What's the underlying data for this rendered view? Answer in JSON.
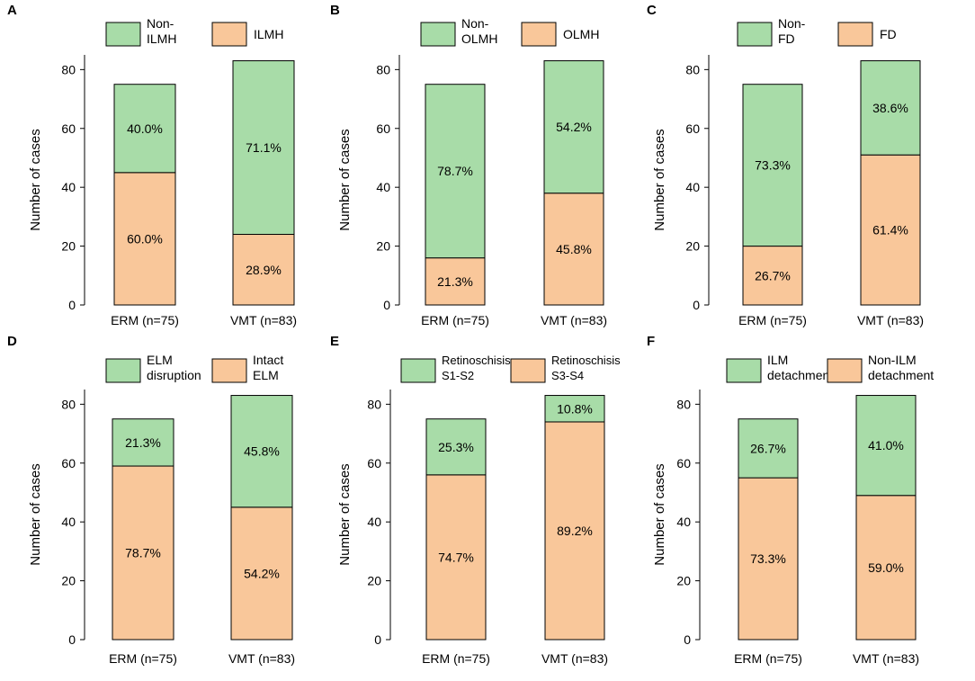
{
  "figure": {
    "y_axis_label": "Number of cases",
    "colors": {
      "green": "#a8dca8",
      "orange": "#f9c79a",
      "outline": "#000000"
    }
  },
  "chart_data": [
    {
      "panel": "A",
      "type": "bar",
      "stacked": true,
      "categories": [
        "ERM (n=75)",
        "VMT (n=83)"
      ],
      "ylabel": "Number of cases",
      "ylim": [
        0,
        85
      ],
      "yticks": [
        0,
        20,
        40,
        60,
        80
      ],
      "series": [
        {
          "name": "ILMH",
          "color": "orange",
          "values": [
            45,
            24
          ],
          "labels": [
            "60.0%",
            "28.9%"
          ]
        },
        {
          "name": "Non-ILMH",
          "color": "green",
          "values": [
            30,
            59
          ],
          "labels": [
            "40.0%",
            "71.1%"
          ]
        }
      ],
      "legend": [
        {
          "color": "green",
          "lines": [
            "Non-",
            "ILMH"
          ]
        },
        {
          "color": "orange",
          "lines": [
            "ILMH"
          ]
        }
      ]
    },
    {
      "panel": "B",
      "type": "bar",
      "stacked": true,
      "categories": [
        "ERM (n=75)",
        "VMT (n=83)"
      ],
      "ylabel": "Number of cases",
      "ylim": [
        0,
        85
      ],
      "yticks": [
        0,
        20,
        40,
        60,
        80
      ],
      "series": [
        {
          "name": "OLMH",
          "color": "orange",
          "values": [
            16,
            38
          ],
          "labels": [
            "21.3%",
            "45.8%"
          ]
        },
        {
          "name": "Non-OLMH",
          "color": "green",
          "values": [
            59,
            45
          ],
          "labels": [
            "78.7%",
            "54.2%"
          ]
        }
      ],
      "legend": [
        {
          "color": "green",
          "lines": [
            "Non-",
            "OLMH"
          ]
        },
        {
          "color": "orange",
          "lines": [
            "OLMH"
          ]
        }
      ]
    },
    {
      "panel": "C",
      "type": "bar",
      "stacked": true,
      "categories": [
        "ERM (n=75)",
        "VMT (n=83)"
      ],
      "ylabel": "Number of cases",
      "ylim": [
        0,
        85
      ],
      "yticks": [
        0,
        20,
        40,
        60,
        80
      ],
      "series": [
        {
          "name": "FD",
          "color": "orange",
          "values": [
            20,
            51
          ],
          "labels": [
            "26.7%",
            "61.4%"
          ]
        },
        {
          "name": "Non-FD",
          "color": "green",
          "values": [
            55,
            32
          ],
          "labels": [
            "73.3%",
            "38.6%"
          ]
        }
      ],
      "legend": [
        {
          "color": "green",
          "lines": [
            "Non-",
            "FD"
          ]
        },
        {
          "color": "orange",
          "lines": [
            "FD"
          ]
        }
      ]
    },
    {
      "panel": "D",
      "type": "bar",
      "stacked": true,
      "categories": [
        "ERM (n=75)",
        "VMT (n=83)"
      ],
      "ylabel": "Number of cases",
      "ylim": [
        0,
        85
      ],
      "yticks": [
        0,
        20,
        40,
        60,
        80
      ],
      "series": [
        {
          "name": "Intact ELM",
          "color": "orange",
          "values": [
            59,
            45
          ],
          "labels": [
            "78.7%",
            "54.2%"
          ]
        },
        {
          "name": "ELM disruption",
          "color": "green",
          "values": [
            16,
            38
          ],
          "labels": [
            "21.3%",
            "45.8%"
          ]
        }
      ],
      "legend": [
        {
          "color": "green",
          "lines": [
            "ELM",
            "disruption"
          ]
        },
        {
          "color": "orange",
          "lines": [
            "Intact",
            "ELM"
          ]
        }
      ]
    },
    {
      "panel": "E",
      "type": "bar",
      "stacked": true,
      "categories": [
        "ERM (n=75)",
        "VMT (n=83)"
      ],
      "ylabel": "Number of cases",
      "ylim": [
        0,
        85
      ],
      "yticks": [
        0,
        20,
        40,
        60,
        80
      ],
      "series": [
        {
          "name": "Retinoschisis S3-S4",
          "color": "orange",
          "values": [
            56,
            74
          ],
          "labels": [
            "74.7%",
            "89.2%"
          ]
        },
        {
          "name": "Retinoschisis S1-S2",
          "color": "green",
          "values": [
            19,
            9
          ],
          "labels": [
            "25.3%",
            "10.8%"
          ]
        }
      ],
      "legend": [
        {
          "color": "green",
          "lines": [
            "Retinoschisis",
            "S1-S2"
          ]
        },
        {
          "color": "orange",
          "lines": [
            "Retinoschisis",
            "S3-S4"
          ]
        }
      ]
    },
    {
      "panel": "F",
      "type": "bar",
      "stacked": true,
      "categories": [
        "ERM (n=75)",
        "VMT (n=83)"
      ],
      "ylabel": "Number of cases",
      "ylim": [
        0,
        85
      ],
      "yticks": [
        0,
        20,
        40,
        60,
        80
      ],
      "series": [
        {
          "name": "Non-ILM detachment",
          "color": "orange",
          "values": [
            55,
            49
          ],
          "labels": [
            "73.3%",
            "59.0%"
          ]
        },
        {
          "name": "ILM detachment",
          "color": "green",
          "values": [
            20,
            34
          ],
          "labels": [
            "26.7%",
            "41.0%"
          ]
        }
      ],
      "legend": [
        {
          "color": "green",
          "lines": [
            "ILM",
            "detachment"
          ]
        },
        {
          "color": "orange",
          "lines": [
            "Non-ILM",
            "detachment"
          ]
        }
      ]
    }
  ]
}
